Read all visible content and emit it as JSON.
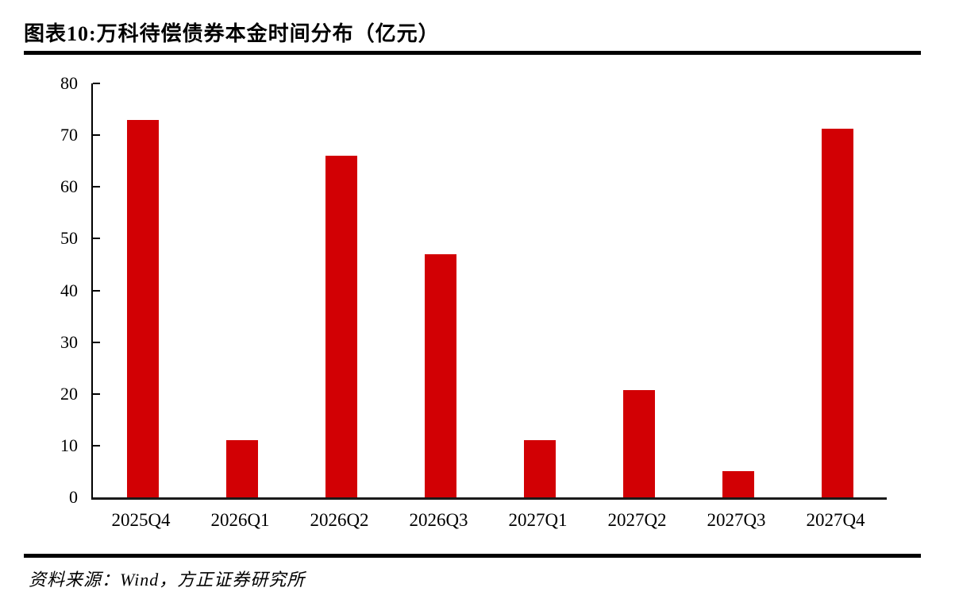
{
  "figure": {
    "title": "图表10:万科待偿债券本金时间分布（亿元）",
    "source": "资料来源：Wind，方正证券研究所"
  },
  "colors": {
    "bar": "#D20004",
    "axis": "#000000",
    "rule": "#000000",
    "background": "#FFFFFF",
    "text": "#000000"
  },
  "chart_data": {
    "type": "bar",
    "title": "万科待偿债券本金时间分布（亿元）",
    "unit": "亿元",
    "categories": [
      "2025Q4",
      "2026Q1",
      "2026Q2",
      "2026Q3",
      "2027Q1",
      "2027Q2",
      "2027Q3",
      "2027Q4"
    ],
    "values": [
      73,
      11,
      66,
      47,
      11,
      20.8,
      5,
      71.2
    ],
    "xlabel": "",
    "ylabel": "",
    "ylim": [
      0,
      80
    ],
    "yticks": [
      0,
      10,
      20,
      30,
      40,
      50,
      60,
      70,
      80
    ],
    "grid": false,
    "legend": "none",
    "bar_color": "#D20004"
  }
}
